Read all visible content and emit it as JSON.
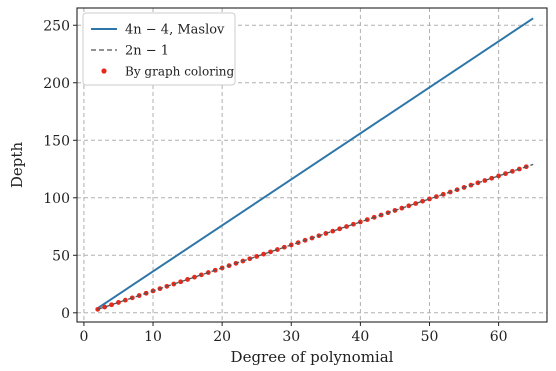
{
  "chart_data": {
    "type": "line",
    "xlabel": "Degree of polynomial",
    "ylabel": "Depth",
    "xlim": [
      -1,
      67
    ],
    "ylim": [
      -8,
      265
    ],
    "xticks": [
      0,
      10,
      20,
      30,
      40,
      50,
      60
    ],
    "yticks": [
      0,
      50,
      100,
      150,
      200,
      250
    ],
    "grid": true,
    "legend_position": "top-left",
    "series": [
      {
        "name": "4n − 4, Maslov",
        "style": "line",
        "color": "#2e76a8",
        "x": [
          2,
          65
        ],
        "y": [
          4,
          256
        ]
      },
      {
        "name": "2n − 1",
        "style": "dashed",
        "color": "#555555",
        "x": [
          2,
          65
        ],
        "y": [
          3,
          129
        ]
      },
      {
        "name": "By graph coloring",
        "style": "scatter",
        "color": "#e8291c",
        "x": [
          2,
          3,
          4,
          5,
          6,
          7,
          8,
          9,
          10,
          11,
          12,
          13,
          14,
          15,
          16,
          17,
          18,
          19,
          20,
          21,
          22,
          23,
          24,
          25,
          26,
          27,
          28,
          29,
          30,
          31,
          32,
          33,
          34,
          35,
          36,
          37,
          38,
          39,
          40,
          41,
          42,
          43,
          44,
          45,
          46,
          47,
          48,
          49,
          50,
          51,
          52,
          53,
          54,
          55,
          56,
          57,
          58,
          59,
          60,
          61,
          62,
          63,
          64
        ],
        "y": [
          3,
          5,
          7,
          9,
          11,
          13,
          15,
          17,
          19,
          21,
          23,
          25,
          27,
          29,
          31,
          33,
          35,
          37,
          39,
          41,
          43,
          45,
          47,
          49,
          51,
          53,
          55,
          57,
          59,
          61,
          63,
          65,
          67,
          69,
          71,
          73,
          75,
          77,
          79,
          81,
          83,
          85,
          87,
          89,
          91,
          93,
          95,
          97,
          99,
          101,
          103,
          105,
          107,
          109,
          111,
          113,
          115,
          117,
          119,
          121,
          123,
          125,
          127
        ]
      }
    ]
  }
}
